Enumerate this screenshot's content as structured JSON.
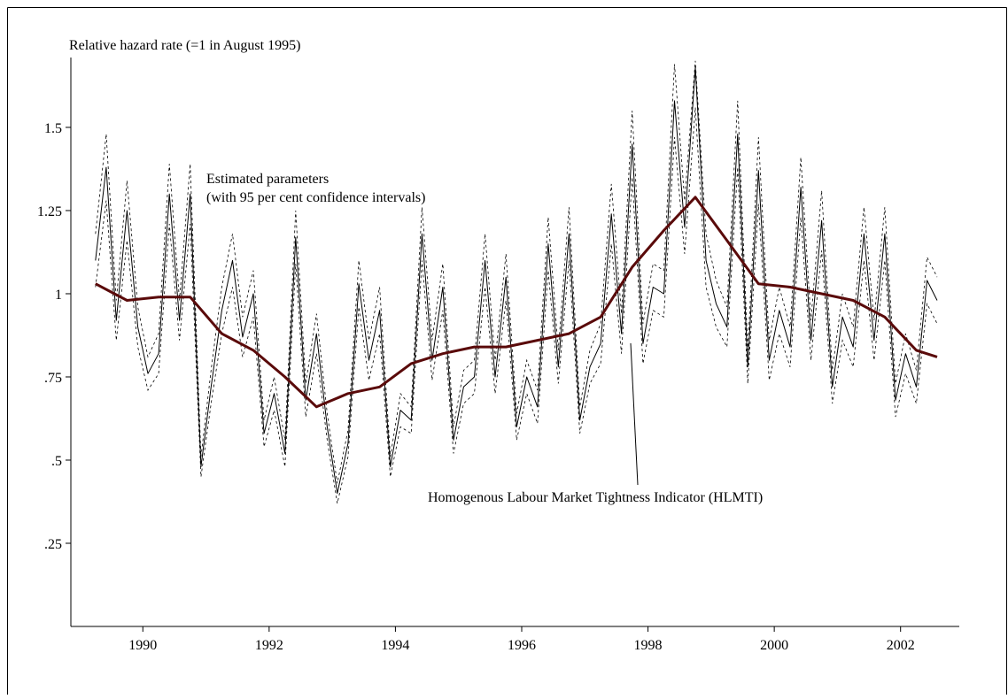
{
  "chart_data": {
    "type": "line",
    "ylabel": "Relative hazard rate (=1 in August 1995)",
    "xlim": [
      1988.86,
      2002.93
    ],
    "ylim": [
      0,
      1.71
    ],
    "xticks": [
      1990,
      1992,
      1994,
      1996,
      1998,
      2000,
      2002
    ],
    "yticks": [
      {
        "value": 0.25,
        "label": ".25"
      },
      {
        "value": 0.5,
        "label": ".5"
      },
      {
        "value": 0.75,
        "label": ".75"
      },
      1,
      1.25,
      1.5
    ],
    "series": [
      {
        "name": "Estimated parameters",
        "ci_label": "(with 95 per cent confidence intervals)",
        "color": "#000000",
        "x": [
          1989.25,
          1989.42,
          1989.58,
          1989.75,
          1989.92,
          1990.08,
          1990.25,
          1990.42,
          1990.58,
          1990.75,
          1990.92,
          1991.08,
          1991.25,
          1991.42,
          1991.58,
          1991.75,
          1991.92,
          1992.08,
          1992.25,
          1992.42,
          1992.58,
          1992.75,
          1992.92,
          1993.08,
          1993.25,
          1993.42,
          1993.58,
          1993.75,
          1993.92,
          1994.08,
          1994.25,
          1994.42,
          1994.58,
          1994.75,
          1994.92,
          1995.08,
          1995.25,
          1995.42,
          1995.58,
          1995.75,
          1995.92,
          1996.08,
          1996.25,
          1996.42,
          1996.58,
          1996.75,
          1996.92,
          1997.08,
          1997.25,
          1997.42,
          1997.58,
          1997.75,
          1997.92,
          1998.08,
          1998.25,
          1998.42,
          1998.58,
          1998.75,
          1998.92,
          1999.08,
          1999.25,
          1999.42,
          1999.58,
          1999.75,
          1999.92,
          2000.08,
          2000.25,
          2000.42,
          2000.58,
          2000.75,
          2000.92,
          2001.08,
          2001.25,
          2001.42,
          2001.58,
          2001.75,
          2001.92,
          2002.08,
          2002.25,
          2002.42,
          2002.58
        ],
        "values": [
          1.1,
          1.38,
          0.92,
          1.25,
          0.9,
          0.76,
          0.82,
          1.3,
          0.92,
          1.3,
          0.48,
          0.72,
          0.95,
          1.1,
          0.87,
          1.0,
          0.58,
          0.7,
          0.52,
          1.17,
          0.68,
          0.88,
          0.6,
          0.4,
          0.55,
          1.03,
          0.8,
          0.95,
          0.48,
          0.65,
          0.62,
          1.18,
          0.8,
          1.02,
          0.56,
          0.72,
          0.75,
          1.1,
          0.75,
          1.05,
          0.6,
          0.75,
          0.66,
          1.15,
          0.78,
          1.18,
          0.62,
          0.78,
          0.85,
          1.24,
          0.88,
          1.45,
          0.85,
          1.02,
          1.0,
          1.58,
          1.2,
          1.68,
          1.1,
          0.97,
          0.9,
          1.48,
          0.78,
          1.37,
          0.8,
          0.95,
          0.84,
          1.32,
          0.86,
          1.22,
          0.72,
          0.93,
          0.84,
          1.18,
          0.86,
          1.18,
          0.68,
          0.82,
          0.72,
          1.04,
          0.98
        ],
        "lower": [
          1.02,
          1.28,
          0.86,
          1.16,
          0.84,
          0.71,
          0.76,
          1.21,
          0.86,
          1.21,
          0.45,
          0.67,
          0.88,
          1.02,
          0.81,
          0.93,
          0.54,
          0.65,
          0.48,
          1.09,
          0.63,
          0.82,
          0.56,
          0.37,
          0.51,
          0.96,
          0.74,
          0.88,
          0.45,
          0.6,
          0.58,
          1.1,
          0.74,
          0.95,
          0.52,
          0.67,
          0.7,
          1.02,
          0.7,
          0.98,
          0.56,
          0.7,
          0.61,
          1.07,
          0.73,
          1.1,
          0.58,
          0.73,
          0.79,
          1.15,
          0.82,
          1.35,
          0.79,
          0.95,
          0.93,
          1.47,
          1.12,
          1.56,
          1.02,
          0.9,
          0.84,
          1.38,
          0.73,
          1.27,
          0.74,
          0.88,
          0.78,
          1.23,
          0.8,
          1.13,
          0.67,
          0.86,
          0.78,
          1.1,
          0.8,
          1.1,
          0.63,
          0.76,
          0.67,
          0.97,
          0.91
        ],
        "upper": [
          1.18,
          1.48,
          0.98,
          1.34,
          0.96,
          0.81,
          0.88,
          1.39,
          0.98,
          1.39,
          0.51,
          0.77,
          1.02,
          1.18,
          0.93,
          1.07,
          0.62,
          0.75,
          0.56,
          1.25,
          0.73,
          0.94,
          0.64,
          0.43,
          0.59,
          1.1,
          0.86,
          1.02,
          0.51,
          0.7,
          0.66,
          1.26,
          0.86,
          1.09,
          0.6,
          0.77,
          0.8,
          1.18,
          0.8,
          1.12,
          0.64,
          0.8,
          0.71,
          1.23,
          0.83,
          1.26,
          0.66,
          0.83,
          0.91,
          1.33,
          0.94,
          1.55,
          0.91,
          1.09,
          1.07,
          1.69,
          1.28,
          1.7,
          1.18,
          1.04,
          0.96,
          1.58,
          0.83,
          1.47,
          0.86,
          1.02,
          0.9,
          1.41,
          0.92,
          1.31,
          0.77,
          1.0,
          0.9,
          1.26,
          0.92,
          1.26,
          0.73,
          0.88,
          0.77,
          1.11,
          1.05
        ]
      },
      {
        "name": "Homogenous Labour Market Tightness Indicator (HLMTI)",
        "color": "#5a0a0a",
        "x": [
          1989.25,
          1989.75,
          1990.25,
          1990.75,
          1991.25,
          1991.75,
          1992.25,
          1992.75,
          1993.25,
          1993.75,
          1994.25,
          1994.75,
          1995.25,
          1995.75,
          1996.25,
          1996.75,
          1997.25,
          1997.75,
          1998.25,
          1998.75,
          1999.25,
          1999.75,
          2000.25,
          2000.75,
          2001.25,
          2001.75,
          2002.25,
          2002.58
        ],
        "values": [
          1.03,
          0.98,
          0.99,
          0.99,
          0.88,
          0.83,
          0.75,
          0.66,
          0.7,
          0.72,
          0.79,
          0.82,
          0.84,
          0.84,
          0.86,
          0.88,
          0.93,
          1.08,
          1.19,
          1.29,
          1.16,
          1.03,
          1.02,
          1.0,
          0.98,
          0.93,
          0.83,
          0.81
        ]
      }
    ]
  }
}
